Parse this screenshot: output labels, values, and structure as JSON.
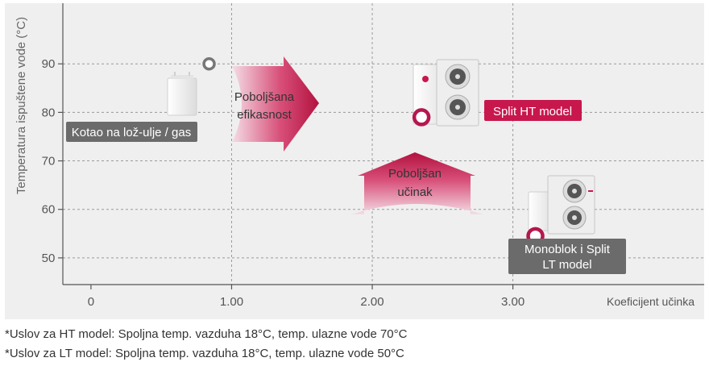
{
  "chart_data": {
    "type": "scatter",
    "ylabel": "Temperatura ispuštene vode (°C)",
    "xlabel": "Koeficijent učinka",
    "xlim": [
      -0.2,
      4.36
    ],
    "ylim": [
      44.5,
      102.5
    ],
    "x_ticks": [
      {
        "value": 0,
        "label": "0"
      },
      {
        "value": 1,
        "label": "1.00"
      },
      {
        "value": 2,
        "label": "2.00"
      },
      {
        "value": 3,
        "label": "3.00"
      }
    ],
    "y_ticks": [
      {
        "value": 50,
        "label": "50"
      },
      {
        "value": 60,
        "label": "60"
      },
      {
        "value": 70,
        "label": "70"
      },
      {
        "value": 80,
        "label": "80"
      },
      {
        "value": 90,
        "label": "90"
      }
    ],
    "grid": true,
    "points": [
      {
        "name": "boiler",
        "x": 0.84,
        "y": 90,
        "label": "Kotao na lož-ulje / gas",
        "color": "#777777",
        "label_bg": "#6b6b6b"
      },
      {
        "name": "split-ht",
        "x": 2.35,
        "y": 79,
        "label": "Split HT model",
        "color": "#b5174f",
        "label_bg": "#c8174d"
      },
      {
        "name": "monoblok-lt",
        "x": 3.16,
        "y": 54.5,
        "label_lines": [
          "Monoblok i Split",
          "LT model"
        ],
        "color": "#b5174f",
        "label_bg": "#6b6b6b"
      }
    ],
    "annotations": [
      {
        "name": "efficiency-arrow",
        "lines": [
          "Poboljšana",
          "efikasnost"
        ],
        "direction": "right"
      },
      {
        "name": "performance-arrow",
        "lines": [
          "Poboljšan",
          "učinak"
        ],
        "direction": "up"
      }
    ],
    "colors": {
      "accent": "#c8174d",
      "grid": "#9a9a9a",
      "plot_bg": "#efefef"
    }
  },
  "footnotes": [
    "*Uslov za HT model: Spoljna temp. vazduha 18°C, temp. ulazne vode 70°C",
    "*Uslov za LT model: Spoljna temp. vazduha 18°C, temp. ulazne vode 50°C"
  ]
}
